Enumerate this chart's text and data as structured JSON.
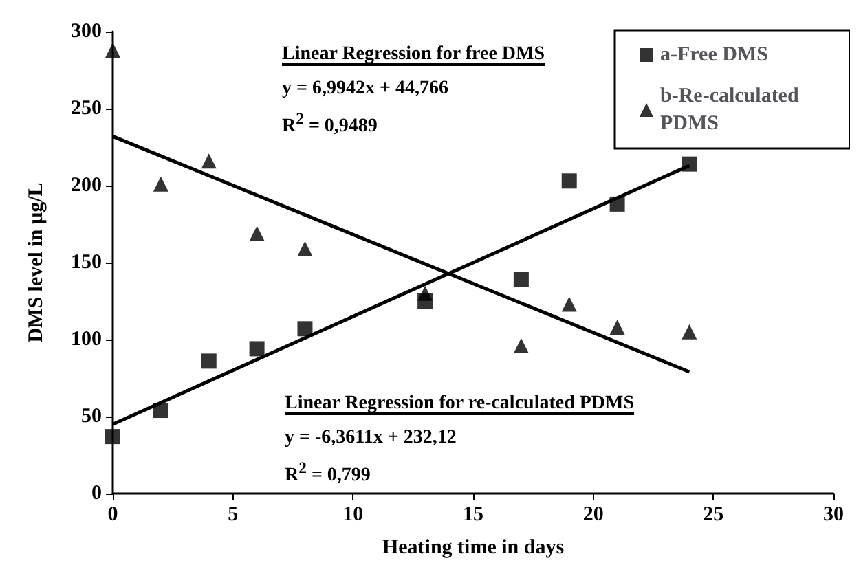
{
  "chart_data": {
    "type": "scatter",
    "xlabel": "Heating time in days",
    "ylabel": "DMS level in µg/L",
    "xlim": [
      0,
      30
    ],
    "xticks": [
      0,
      5,
      10,
      15,
      20,
      25,
      30
    ],
    "ylim": [
      0,
      300
    ],
    "yticks": [
      0,
      50,
      100,
      150,
      200,
      250,
      300
    ],
    "grid": false,
    "legend": "top right",
    "series": [
      {
        "name": "a-Free DMS",
        "color": "#000000",
        "marker": "square",
        "x": [
          0,
          2,
          4,
          6,
          8,
          13,
          17,
          19,
          21,
          24
        ],
        "values": [
          37,
          54,
          86,
          94,
          107,
          125,
          139,
          203,
          188,
          214
        ]
      },
      {
        "name": "b-Re-calculated PDMS",
        "color": "#000000",
        "marker": "triangle",
        "x": [
          0,
          2,
          4,
          6,
          8,
          13,
          17,
          19,
          21,
          24
        ],
        "values": [
          288,
          201,
          216,
          169,
          159,
          130,
          96,
          123,
          108,
          105
        ]
      },
      {
        "type": "line",
        "color": "#000000",
        "marker": "none",
        "x": [
          0,
          24
        ],
        "values": [
          45,
          213
        ]
      },
      {
        "type": "line",
        "color": "#000000",
        "marker": "none",
        "x": [
          0,
          24
        ],
        "values": [
          232,
          79
        ]
      }
    ],
    "annotations": [
      "Linear Regression for free DMS",
      "y = 6,9942x + 44,766",
      "R$^{2}$ = 0,9489",
      "Linear Regression for re-calculated PDMS",
      "y = -6,3611x + 232,12",
      "R$^{2}$ = 0,799"
    ]
  }
}
